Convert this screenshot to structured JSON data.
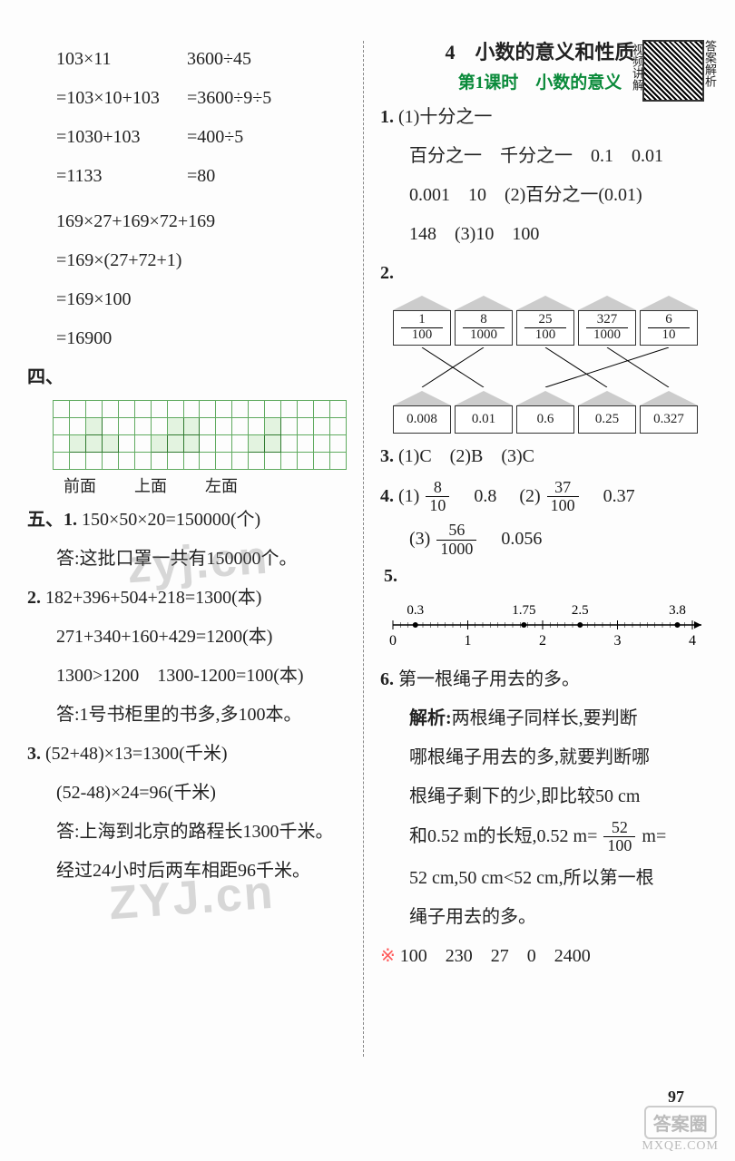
{
  "left_calc_a": {
    "l1": "103×11",
    "l2": "=103×10+103",
    "l3": "=1030+103",
    "l4": "=1133"
  },
  "left_calc_b": {
    "l1": "3600÷45",
    "l2": "=3600÷9÷5",
    "l3": "=400÷5",
    "l4": "=80"
  },
  "left_calc_c": {
    "l1": "169×27+169×72+169",
    "l2": "=169×(27+72+1)",
    "l3": "=169×100",
    "l4": "=16900"
  },
  "four_label": "四、",
  "grid_labels": {
    "a": "前面",
    "b": "上面",
    "c": "左面"
  },
  "five_label": "五、1.",
  "five": {
    "q1l1": "150×50×20=150000(个)",
    "q1l2": "答:这批口罩一共有150000个。",
    "q2l0": "2.",
    "q2l1": "182+396+504+218=1300(本)",
    "q2l2": "271+340+160+429=1200(本)",
    "q2l3": "1300>1200　1300-1200=100(本)",
    "q2l4": "答:1号书柜里的书多,多100本。",
    "q3l0": "3.",
    "q3l1": "(52+48)×13=1300(千米)",
    "q3l2": "(52-48)×24=96(千米)",
    "q3l3": "答:上海到北京的路程长1300千米。",
    "q3l4": "经过24小时后两车相距96千米。"
  },
  "chapter": "4　小数的意义和性质",
  "lesson": "第1课时　小数的意义",
  "qr_left": "视频讲解",
  "qr_right": "答案解析",
  "q1": {
    "l0": "1.",
    "l1": "(1)十分之一",
    "l2": "百分之一　千分之一　0.1　0.01",
    "l3": "0.001　10　(2)百分之一(0.01)",
    "l4": "148　(3)10　100"
  },
  "q2": {
    "l0": "2.",
    "top": [
      {
        "num": "1",
        "den": "100"
      },
      {
        "num": "8",
        "den": "1000"
      },
      {
        "num": "25",
        "den": "100"
      },
      {
        "num": "327",
        "den": "1000"
      },
      {
        "num": "6",
        "den": "10"
      }
    ],
    "bottom": [
      "0.008",
      "0.01",
      "0.6",
      "0.25",
      "0.327"
    ]
  },
  "q3": {
    "l0": "3.",
    "body": "(1)C　(2)B　(3)C"
  },
  "q4": {
    "l0": "4.",
    "p1a_num": "8",
    "p1a_den": "10",
    "p1b": "0.8",
    "p2a_num": "37",
    "p2a_den": "100",
    "p2b": "0.37",
    "p3a_num": "56",
    "p3a_den": "1000",
    "p3b": "0.056",
    "p1_prefix": "(1)",
    "p2_prefix": "(2)",
    "p3_prefix": "(3)"
  },
  "q5": {
    "l0": "5.",
    "ticks": [
      "0",
      "1",
      "2",
      "3",
      "4"
    ],
    "points": [
      {
        "x": 0.3,
        "label": "0.3"
      },
      {
        "x": 1.75,
        "label": "1.75"
      },
      {
        "x": 2.5,
        "label": "2.5"
      },
      {
        "x": 3.8,
        "label": "3.8"
      }
    ]
  },
  "q6": {
    "l0": "6.",
    "l1": "第一根绳子用去的多。",
    "jx": "解析:",
    "l2": "两根绳子同样长,要判断",
    "l3": "哪根绳子用去的多,就要判断哪",
    "l4": "根绳子剩下的少,即比较50 cm",
    "l5a": "和0.52 m的长短,0.52 m=",
    "l5_num": "52",
    "l5_den": "100",
    "l5b": " m=",
    "l6": "52 cm,50 cm<52 cm,所以第一根",
    "l7": "绳子用去的多。"
  },
  "star_line": {
    "star": "※",
    "body": "100　230　27　0　2400"
  },
  "pagenum": "97",
  "wm1": "zyj.cn",
  "wm2": "ZYJ.cn",
  "footer": {
    "box": "答案圈",
    "url": "MXQE.COM"
  }
}
